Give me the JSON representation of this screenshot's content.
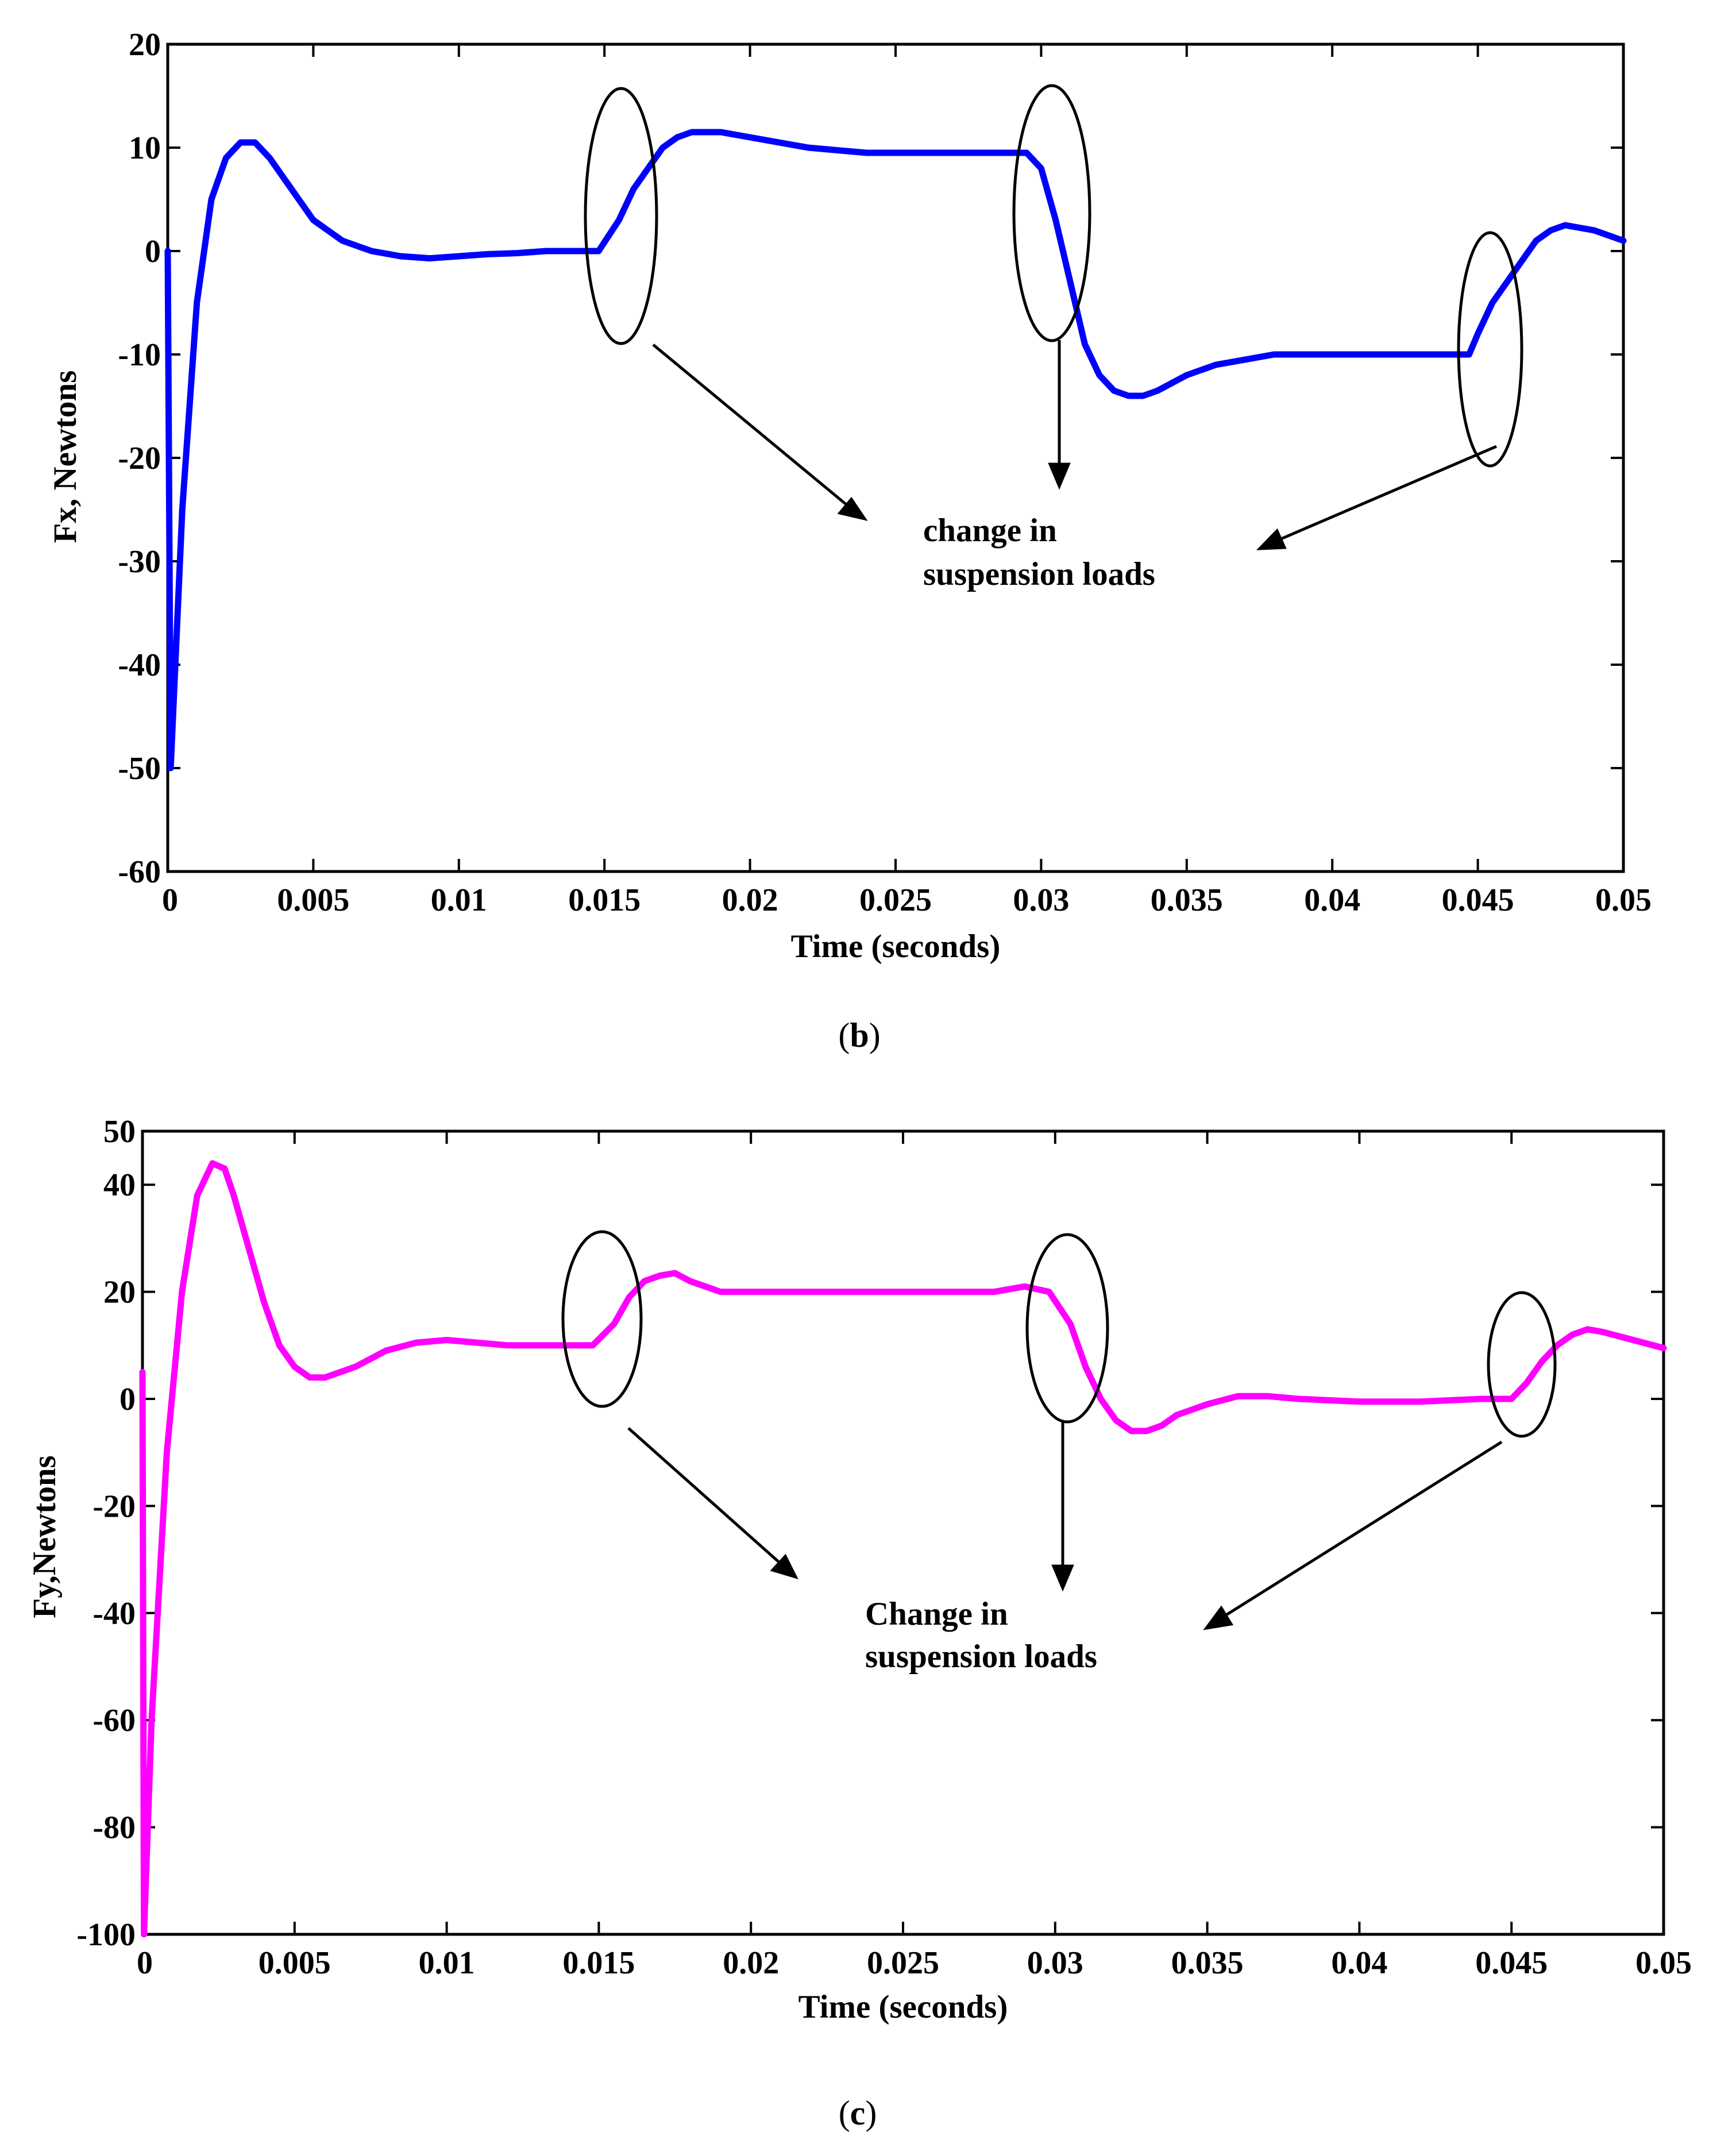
{
  "chart_data": [
    {
      "type": "line",
      "caption": "(b)",
      "caption_parts": [
        "(",
        "b",
        ")"
      ],
      "xlabel": "Time (seconds)",
      "ylabel": "Fx, Newtons",
      "xlim": [
        0,
        0.05
      ],
      "ylim": [
        -60,
        20
      ],
      "xticks": [
        0,
        0.005,
        0.01,
        0.015,
        0.02,
        0.025,
        0.03,
        0.035,
        0.04,
        0.045,
        0.05
      ],
      "xtick_labels": [
        "0",
        "0.005",
        "0.01",
        "0.015",
        "0.02",
        "0.025",
        "0.03",
        "0.035",
        "0.04",
        "0.045",
        "0.05"
      ],
      "yticks": [
        -60,
        -50,
        -40,
        -30,
        -20,
        -10,
        0,
        10,
        20
      ],
      "ytick_labels": [
        "-60",
        "-50",
        "-40",
        "-30",
        "-20",
        "-10",
        "0",
        "10",
        "20"
      ],
      "grid": false,
      "color": "#0000ff",
      "series": [
        {
          "x": [
            0,
            0.0001,
            0.0005,
            0.001,
            0.0015,
            0.002,
            0.0025,
            0.003,
            0.0035,
            0.004,
            0.005,
            0.006,
            0.007,
            0.008,
            0.009,
            0.01,
            0.011,
            0.012,
            0.013,
            0.014,
            0.0148,
            0.0155,
            0.016,
            0.0165,
            0.017,
            0.0175,
            0.018,
            0.019,
            0.02,
            0.022,
            0.024,
            0.026,
            0.028,
            0.0295,
            0.03,
            0.0305,
            0.031,
            0.0315,
            0.032,
            0.0325,
            0.033,
            0.0335,
            0.034,
            0.035,
            0.036,
            0.037,
            0.038,
            0.04,
            0.042,
            0.044,
            0.0447,
            0.045,
            0.0455,
            0.046,
            0.0465,
            0.047,
            0.0475,
            0.048,
            0.049,
            0.05
          ],
          "y": [
            0,
            -50,
            -25,
            -5,
            5,
            9,
            10.5,
            10.5,
            9,
            7,
            3,
            1,
            0,
            -0.5,
            -0.7,
            -0.5,
            -0.3,
            -0.2,
            0,
            0,
            0,
            3,
            6,
            8,
            10,
            11,
            11.5,
            11.5,
            11,
            10,
            9.5,
            9.5,
            9.5,
            9.5,
            8,
            3,
            -3,
            -9,
            -12,
            -13.5,
            -14,
            -14,
            -13.5,
            -12,
            -11,
            -10.5,
            -10,
            -10,
            -10,
            -10,
            -10,
            -8,
            -5,
            -3,
            -1,
            1,
            2,
            2.5,
            2,
            1
          ]
        }
      ],
      "annotations": {
        "line1": "change in",
        "line2": "suspension loads"
      }
    },
    {
      "type": "line",
      "caption": "(c)",
      "caption_parts": [
        "(",
        "c",
        ")"
      ],
      "xlabel": "Time (seconds)",
      "ylabel": "Fy,Newtons",
      "xlim": [
        0,
        0.05
      ],
      "ylim": [
        -100,
        50
      ],
      "xticks": [
        0,
        0.005,
        0.01,
        0.015,
        0.02,
        0.025,
        0.03,
        0.035,
        0.04,
        0.045,
        0.05
      ],
      "xtick_labels": [
        "0",
        "0.005",
        "0.01",
        "0.015",
        "0.02",
        "0.025",
        "0.03",
        "0.035",
        "0.04",
        "0.045",
        "0.05"
      ],
      "yticks": [
        -100,
        -80,
        -60,
        -40,
        -20,
        0,
        20,
        40,
        50
      ],
      "ytick_labels": [
        "-100",
        "-80",
        "-60",
        "-40",
        "-20",
        "0",
        "20",
        "40",
        "50"
      ],
      "grid": false,
      "color": "#ff00ff",
      "series": [
        {
          "x": [
            0,
            5e-05,
            0.0003,
            0.0008,
            0.0013,
            0.0018,
            0.0023,
            0.0027,
            0.003,
            0.0035,
            0.004,
            0.0045,
            0.005,
            0.0055,
            0.006,
            0.0065,
            0.007,
            0.008,
            0.009,
            0.01,
            0.011,
            0.012,
            0.013,
            0.014,
            0.0148,
            0.0155,
            0.016,
            0.0165,
            0.017,
            0.0175,
            0.018,
            0.019,
            0.02,
            0.022,
            0.024,
            0.026,
            0.028,
            0.029,
            0.0298,
            0.0305,
            0.031,
            0.0315,
            0.032,
            0.0325,
            0.033,
            0.0335,
            0.034,
            0.035,
            0.036,
            0.037,
            0.038,
            0.04,
            0.042,
            0.044,
            0.045,
            0.0455,
            0.046,
            0.0465,
            0.047,
            0.0475,
            0.048,
            0.049,
            0.05
          ],
          "y": [
            5,
            -100,
            -60,
            -10,
            20,
            38,
            44,
            43,
            38,
            28,
            18,
            10,
            6,
            4,
            4,
            5,
            6,
            9,
            10.5,
            11,
            10.5,
            10,
            10,
            10,
            10,
            14,
            19,
            22,
            23,
            23.5,
            22,
            20,
            20,
            20,
            20,
            20,
            20,
            21,
            20,
            14,
            6,
            0,
            -4,
            -6,
            -6,
            -5,
            -3,
            -1,
            0.5,
            0.5,
            0,
            -0.5,
            -0.5,
            0,
            0,
            3,
            7,
            10,
            12,
            13,
            12.5,
            11,
            9.5
          ]
        }
      ],
      "annotations": {
        "line1": "Change in",
        "line2": "suspension loads"
      }
    }
  ]
}
